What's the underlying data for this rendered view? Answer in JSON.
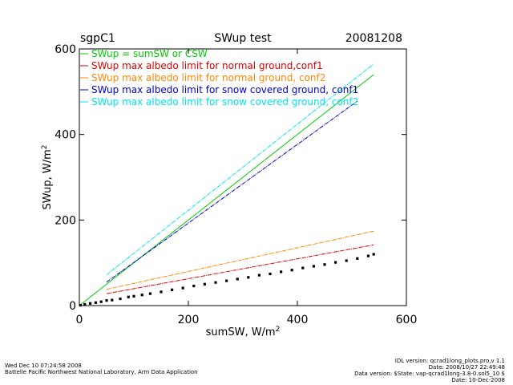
{
  "header": {
    "site": "sgpC1",
    "title": "SWup test",
    "date": "20081208"
  },
  "footer": {
    "left": [
      "Wed Dec 10 07:24:58 2008",
      "Battelle Pacific Northwest National Laboratory, Arm Data Application"
    ],
    "right": [
      "IDL version: qcrad1long_plots.pro,v 1.1",
      "Date: 2008/10/27 22:49:48",
      "Data version: $State: vap-qcrad1long-3.8-0.sol5_10 $",
      "Date: 10-Dec-2008"
    ]
  },
  "chart_data": {
    "type": "scatter",
    "title": "SWup test",
    "xlabel": "sumSW, W/m",
    "ylabel": "SWup, W/m",
    "unit_superscript": "2",
    "xlim": [
      0,
      600
    ],
    "ylim": [
      0,
      600
    ],
    "xticks": [
      0,
      200,
      400,
      600
    ],
    "yticks": [
      0,
      200,
      400,
      600
    ],
    "legend_position": "top-left",
    "series": [
      {
        "name": "SWup = sumSW or CSW",
        "color": "#00cc00",
        "style": "line",
        "x": [
          0,
          540
        ],
        "y": [
          0,
          540
        ]
      },
      {
        "name": "SWup max albedo limit for normal ground,conf1",
        "color": "#dd0000",
        "style": "line",
        "x": [
          50,
          540
        ],
        "y": [
          28,
          142
        ]
      },
      {
        "name": "SWup max albedo limit for normal ground, conf2",
        "color": "#ff8800",
        "style": "line",
        "x": [
          50,
          540
        ],
        "y": [
          38,
          174
        ]
      },
      {
        "name": "SWup max albedo limit for snow covered ground, conf1",
        "color": "#0000cc",
        "style": "line",
        "x": [
          50,
          510
        ],
        "y": [
          55,
          478
        ]
      },
      {
        "name": "SWup max albedo limit for snow covered ground, conf2",
        "color": "#00e5ee",
        "style": "line",
        "x": [
          50,
          540
        ],
        "y": [
          72,
          565
        ]
      },
      {
        "name": "",
        "color": "#000000",
        "style": "points",
        "x": [
          2,
          10,
          20,
          30,
          40,
          50,
          60,
          75,
          90,
          100,
          115,
          130,
          150,
          170,
          190,
          210,
          230,
          250,
          270,
          290,
          310,
          330,
          350,
          370,
          390,
          410,
          430,
          450,
          470,
          490,
          510,
          530,
          540
        ],
        "y": [
          1,
          3,
          5,
          7,
          9,
          12,
          13,
          16,
          20,
          22,
          25,
          28,
          32,
          37,
          41,
          46,
          50,
          54,
          58,
          62,
          66,
          71,
          74,
          79,
          83,
          88,
          92,
          96,
          101,
          105,
          110,
          116,
          120
        ]
      }
    ]
  }
}
